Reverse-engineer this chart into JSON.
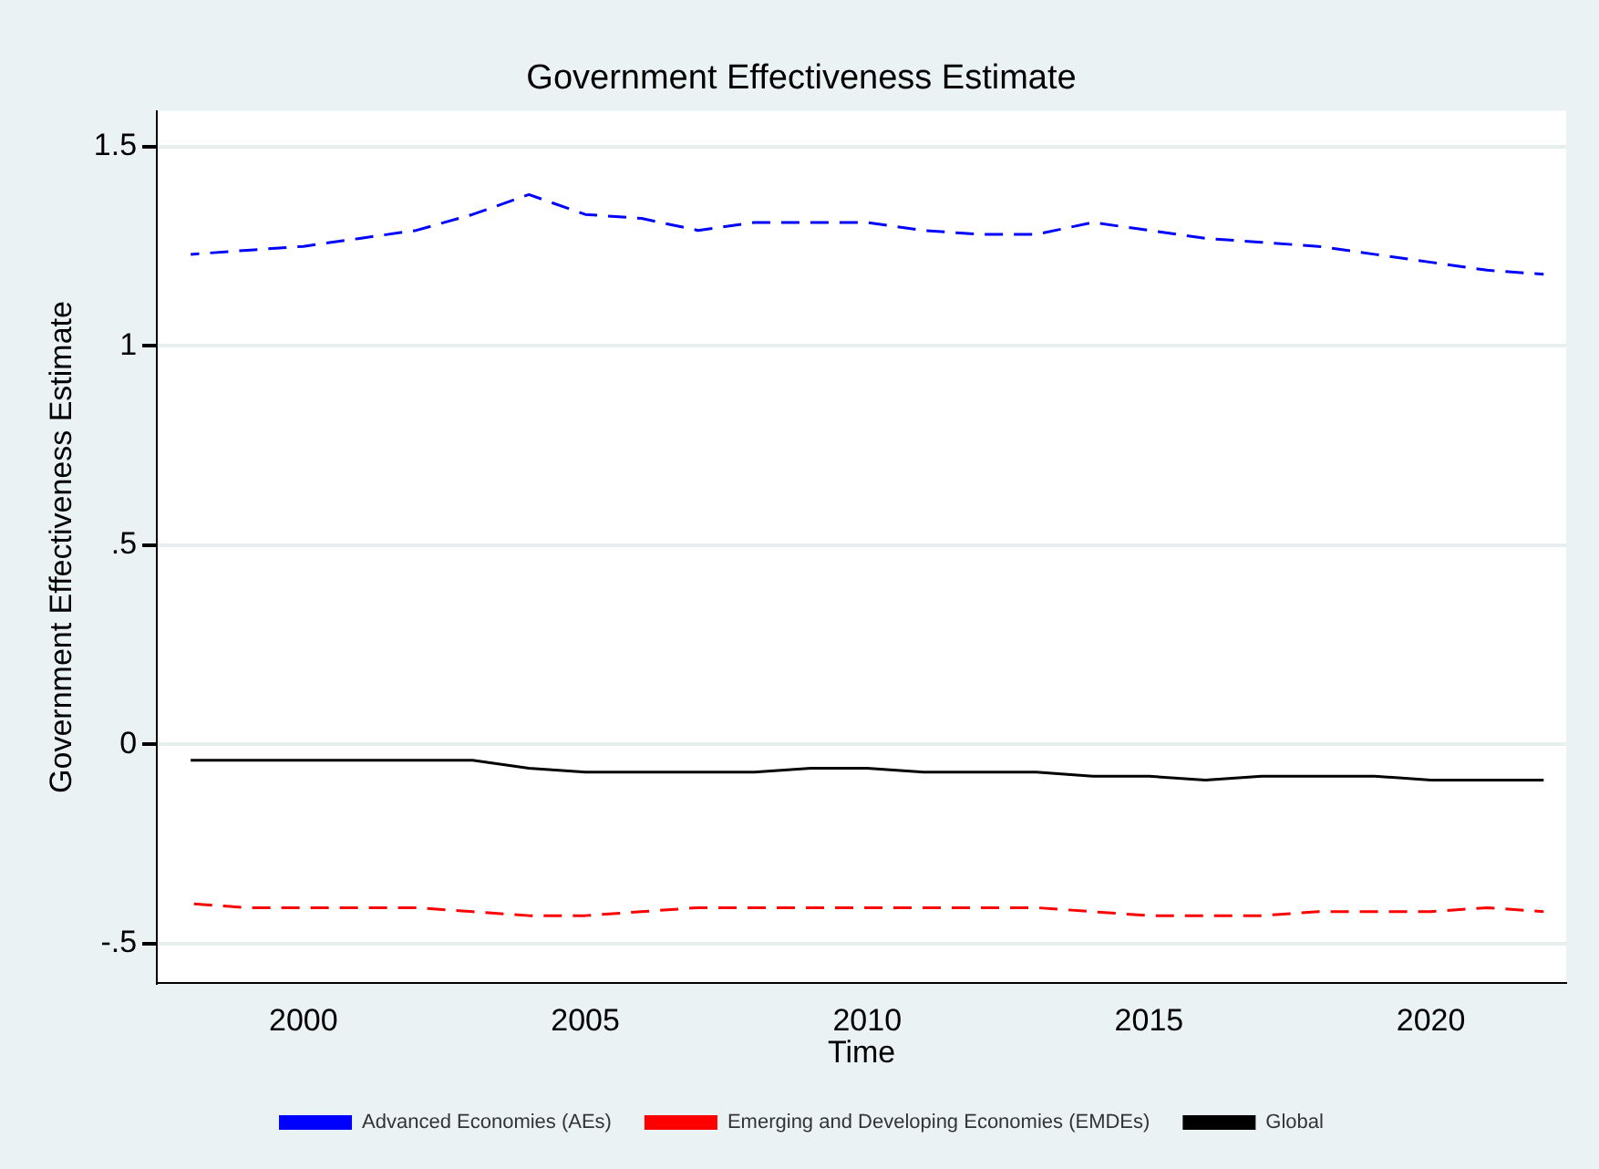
{
  "chart_data": {
    "type": "line",
    "title": "Government Effectiveness Estimate",
    "xlabel": "Time",
    "ylabel": "Government Effectiveness Estimate",
    "x": [
      1998,
      1999,
      2000,
      2001,
      2002,
      2003,
      2004,
      2005,
      2006,
      2007,
      2008,
      2009,
      2010,
      2011,
      2012,
      2013,
      2014,
      2015,
      2016,
      2017,
      2018,
      2019,
      2020,
      2021,
      2022
    ],
    "series": [
      {
        "name": "Advanced Economies (AEs)",
        "color": "#0000ff",
        "line_style": "dashed",
        "values": [
          1.23,
          1.24,
          1.25,
          1.27,
          1.29,
          1.33,
          1.38,
          1.33,
          1.32,
          1.29,
          1.31,
          1.31,
          1.31,
          1.29,
          1.28,
          1.28,
          1.31,
          1.29,
          1.27,
          1.26,
          1.25,
          1.23,
          1.21,
          1.19,
          1.18
        ]
      },
      {
        "name": "Emerging and Developing Economies (EMDEs)",
        "color": "#ff0000",
        "line_style": "dashed",
        "values": [
          -0.4,
          -0.41,
          -0.41,
          -0.41,
          -0.41,
          -0.42,
          -0.43,
          -0.43,
          -0.42,
          -0.41,
          -0.41,
          -0.41,
          -0.41,
          -0.41,
          -0.41,
          -0.41,
          -0.42,
          -0.43,
          -0.43,
          -0.43,
          -0.42,
          -0.42,
          -0.42,
          -0.41,
          -0.42
        ]
      },
      {
        "name": "Global",
        "color": "#000000",
        "line_style": "solid",
        "values": [
          -0.04,
          -0.04,
          -0.04,
          -0.04,
          -0.04,
          -0.04,
          -0.06,
          -0.07,
          -0.07,
          -0.07,
          -0.07,
          -0.06,
          -0.06,
          -0.07,
          -0.07,
          -0.07,
          -0.08,
          -0.08,
          -0.09,
          -0.08,
          -0.08,
          -0.08,
          -0.09,
          -0.09,
          -0.09
        ]
      }
    ],
    "xlim": [
      1997.4,
      2022.4
    ],
    "xticks": [
      2000,
      2005,
      2010,
      2015,
      2020
    ],
    "ylim": [
      -0.6,
      1.59
    ],
    "yticks": [
      {
        "value": -0.5,
        "label": "-.5"
      },
      {
        "value": 0,
        "label": "0"
      },
      {
        "value": 0.5,
        "label": ".5"
      },
      {
        "value": 1,
        "label": "1"
      },
      {
        "value": 1.5,
        "label": "1.5"
      }
    ],
    "grid": "y",
    "legend": "bottom",
    "marker": "none"
  }
}
